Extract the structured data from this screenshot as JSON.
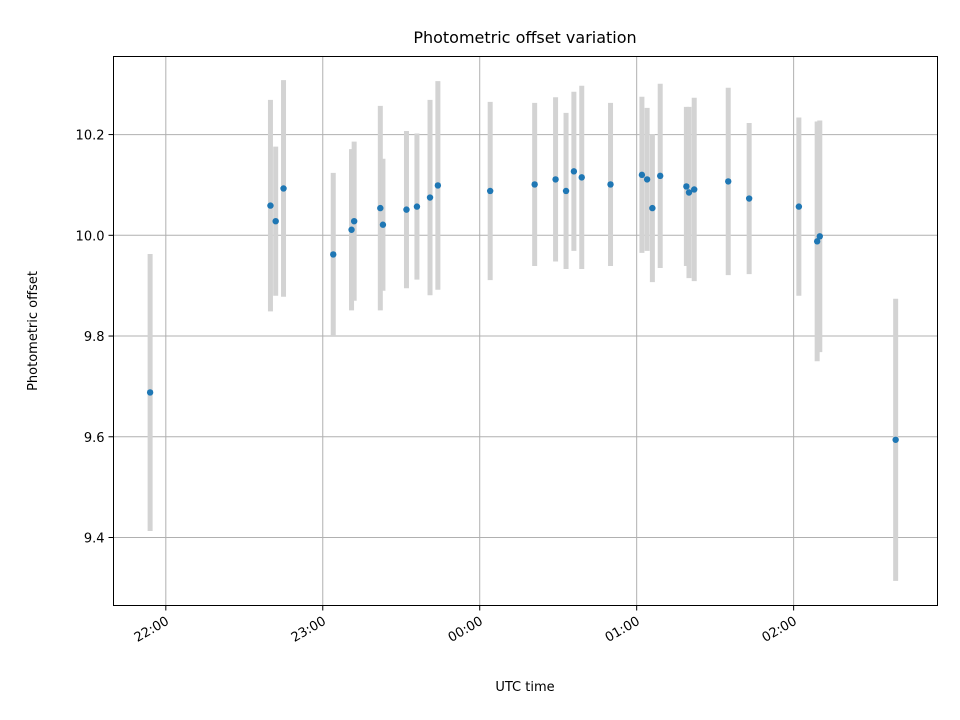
{
  "chart_data": {
    "type": "scatter",
    "title": "Photometric offset variation",
    "xlabel": "UTC time",
    "ylabel": "Photometric offset",
    "x_axis_type": "time",
    "xlim": [
      "21:40",
      "02:55"
    ],
    "ylim": [
      9.265,
      10.355
    ],
    "xticks": [
      "22:00",
      "23:00",
      "00:00",
      "01:00",
      "02:00"
    ],
    "yticks": [
      9.4,
      9.6,
      9.8,
      10.0,
      10.2
    ],
    "grid": true,
    "marker_color": "#1f77b4",
    "errorbar_color": "#d3d3d3",
    "points": [
      {
        "t": "21:54",
        "y": 9.688,
        "err": 0.275
      },
      {
        "t": "22:40",
        "y": 10.059,
        "err": 0.21
      },
      {
        "t": "22:42",
        "y": 10.028,
        "err": 0.148
      },
      {
        "t": "22:45",
        "y": 10.093,
        "err": 0.215
      },
      {
        "t": "23:04",
        "y": 9.962,
        "err": 0.162
      },
      {
        "t": "23:11",
        "y": 10.011,
        "err": 0.16
      },
      {
        "t": "23:12",
        "y": 10.028,
        "err": 0.158
      },
      {
        "t": "23:22",
        "y": 10.054,
        "err": 0.203
      },
      {
        "t": "23:23",
        "y": 10.021,
        "err": 0.131
      },
      {
        "t": "23:32",
        "y": 10.051,
        "err": 0.156
      },
      {
        "t": "23:36",
        "y": 10.057,
        "err": 0.145
      },
      {
        "t": "23:41",
        "y": 10.075,
        "err": 0.194
      },
      {
        "t": "23:44",
        "y": 10.099,
        "err": 0.207
      },
      {
        "t": "00:04",
        "y": 10.088,
        "err": 0.177
      },
      {
        "t": "00:21",
        "y": 10.101,
        "err": 0.162
      },
      {
        "t": "00:29",
        "y": 10.111,
        "err": 0.163
      },
      {
        "t": "00:33",
        "y": 10.088,
        "err": 0.155
      },
      {
        "t": "00:36",
        "y": 10.127,
        "err": 0.158
      },
      {
        "t": "00:39",
        "y": 10.115,
        "err": 0.182
      },
      {
        "t": "00:50",
        "y": 10.101,
        "err": 0.162
      },
      {
        "t": "01:02",
        "y": 10.12,
        "err": 0.155
      },
      {
        "t": "01:04",
        "y": 10.111,
        "err": 0.142
      },
      {
        "t": "01:06",
        "y": 10.054,
        "err": 0.147
      },
      {
        "t": "01:09",
        "y": 10.118,
        "err": 0.183
      },
      {
        "t": "01:19",
        "y": 10.097,
        "err": 0.158
      },
      {
        "t": "01:20",
        "y": 10.085,
        "err": 0.17
      },
      {
        "t": "01:22",
        "y": 10.091,
        "err": 0.182
      },
      {
        "t": "01:35",
        "y": 10.107,
        "err": 0.186
      },
      {
        "t": "01:43",
        "y": 10.073,
        "err": 0.15
      },
      {
        "t": "02:02",
        "y": 10.057,
        "err": 0.177
      },
      {
        "t": "02:09",
        "y": 9.988,
        "err": 0.238
      },
      {
        "t": "02:10",
        "y": 9.998,
        "err": 0.23
      },
      {
        "t": "02:39",
        "y": 9.594,
        "err": 0.28
      }
    ]
  }
}
